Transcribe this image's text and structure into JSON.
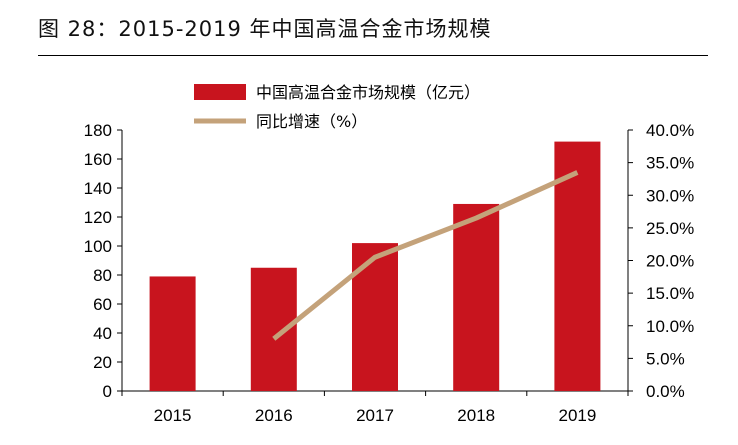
{
  "figure": {
    "title": "图 28：2015-2019 年中国高温合金市场规模"
  },
  "colors": {
    "bar": "#c8141e",
    "line": "#c4a27a",
    "axis": "#000000"
  },
  "chart_data": {
    "type": "bar",
    "categories": [
      "2015",
      "2016",
      "2017",
      "2018",
      "2019"
    ],
    "series": [
      {
        "name": "中国高温合金市场规模（亿元）",
        "type": "bar",
        "axis": "left",
        "values": [
          79,
          85,
          102,
          129,
          172
        ]
      },
      {
        "name": "同比增速（%）",
        "type": "line",
        "axis": "right",
        "values": [
          null,
          8.0,
          20.5,
          26.5,
          33.5
        ]
      }
    ],
    "y_left": {
      "lim": [
        0,
        180
      ],
      "ticks": [
        "0",
        "20",
        "40",
        "60",
        "80",
        "100",
        "120",
        "140",
        "160",
        "180"
      ]
    },
    "y_right": {
      "lim": [
        0,
        40
      ],
      "ticks": [
        "0.0%",
        "5.0%",
        "10.0%",
        "15.0%",
        "20.0%",
        "25.0%",
        "30.0%",
        "35.0%",
        "40.0%"
      ]
    },
    "grid": false,
    "legend_position": "top-center"
  }
}
